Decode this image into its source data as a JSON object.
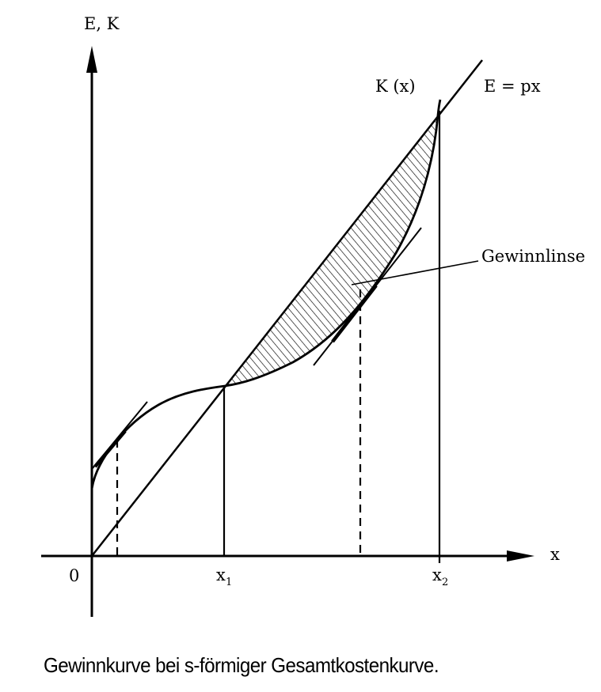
{
  "diagram": {
    "y_axis_label": "E, K",
    "x_axis_label": "x",
    "origin_label": "0",
    "x1_label": "x",
    "x1_sub": "1",
    "x2_label": "x",
    "x2_sub": "2",
    "cost_curve_label": "K (x)",
    "revenue_line_label": "E = px",
    "profit_lens_label": "Gewinnlinse"
  },
  "caption": "Gewinnkurve bei s-förmiger Gesamtkostenkurve."
}
